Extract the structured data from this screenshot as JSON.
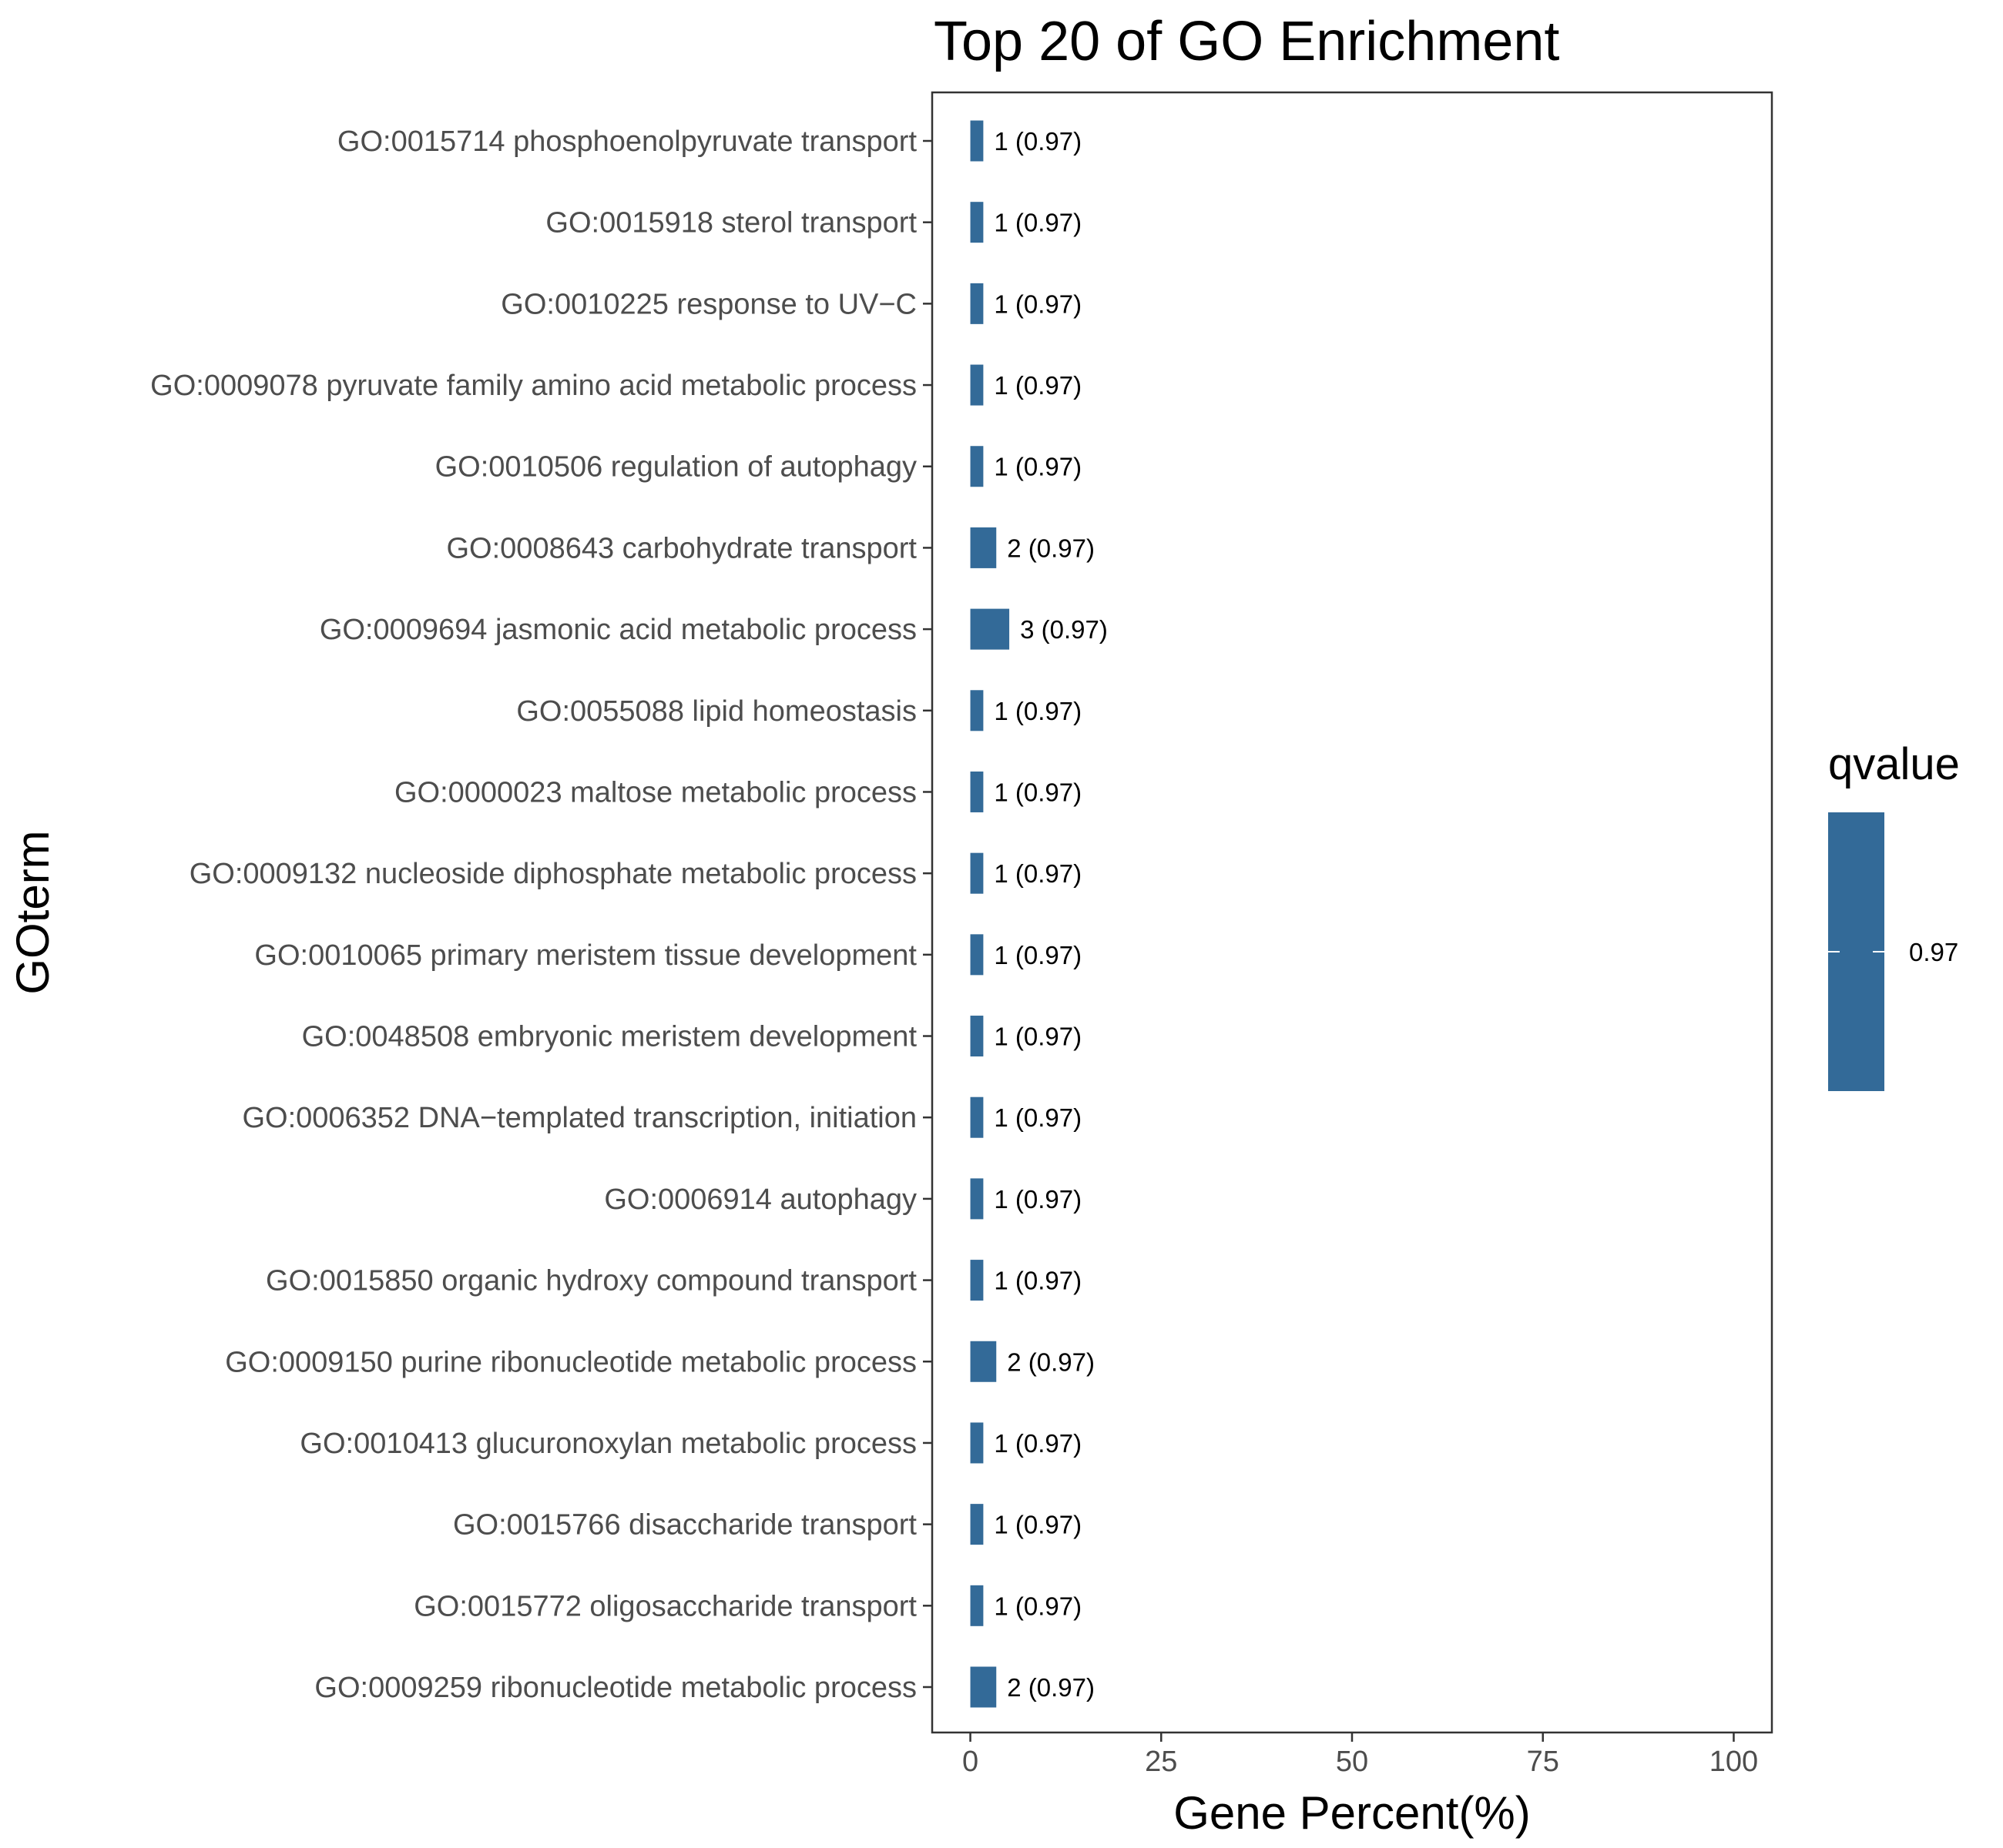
{
  "chart_data": {
    "type": "bar",
    "orientation": "horizontal",
    "title": "Top 20 of GO Enrichment",
    "xlabel": "Gene Percent(%)",
    "ylabel": "GOterm",
    "xlim": [
      -5,
      105
    ],
    "xticks": [
      0,
      25,
      50,
      75,
      100
    ],
    "grid": false,
    "categories": [
      "GO:0015714 phosphoenolpyruvate transport",
      "GO:0015918 sterol transport",
      "GO:0010225 response to UV−C",
      "GO:0009078 pyruvate family amino acid metabolic process",
      "GO:0010506 regulation of autophagy",
      "GO:0008643 carbohydrate transport",
      "GO:0009694 jasmonic acid metabolic process",
      "GO:0055088 lipid homeostasis",
      "GO:0000023 maltose metabolic process",
      "GO:0009132 nucleoside diphosphate metabolic process",
      "GO:0010065 primary meristem tissue development",
      "GO:0048508 embryonic meristem development",
      "GO:0006352 DNA−templated transcription, initiation",
      "GO:0006914 autophagy",
      "GO:0015850 organic hydroxy compound transport",
      "GO:0009150 purine ribonucleotide metabolic process",
      "GO:0010413 glucuronoxylan metabolic process",
      "GO:0015766 disaccharide transport",
      "GO:0015772 oligosaccharide transport",
      "GO:0009259 ribonucleotide metabolic process"
    ],
    "values": [
      1.7,
      1.7,
      1.7,
      1.7,
      1.7,
      3.4,
      5.1,
      1.7,
      1.7,
      1.7,
      1.7,
      1.7,
      1.7,
      1.7,
      1.7,
      3.4,
      1.7,
      1.7,
      1.7,
      3.4
    ],
    "bar_labels": [
      "1 (0.97)",
      "1 (0.97)",
      "1 (0.97)",
      "1 (0.97)",
      "1 (0.97)",
      "2 (0.97)",
      "3 (0.97)",
      "1 (0.97)",
      "1 (0.97)",
      "1 (0.97)",
      "1 (0.97)",
      "1 (0.97)",
      "1 (0.97)",
      "1 (0.97)",
      "1 (0.97)",
      "2 (0.97)",
      "1 (0.97)",
      "1 (0.97)",
      "1 (0.97)",
      "2 (0.97)"
    ],
    "bar_color": "#336a98",
    "legend": {
      "title": "qvalue",
      "ticks": [
        "0.97"
      ],
      "placement": "right",
      "color": "#336a98"
    }
  }
}
